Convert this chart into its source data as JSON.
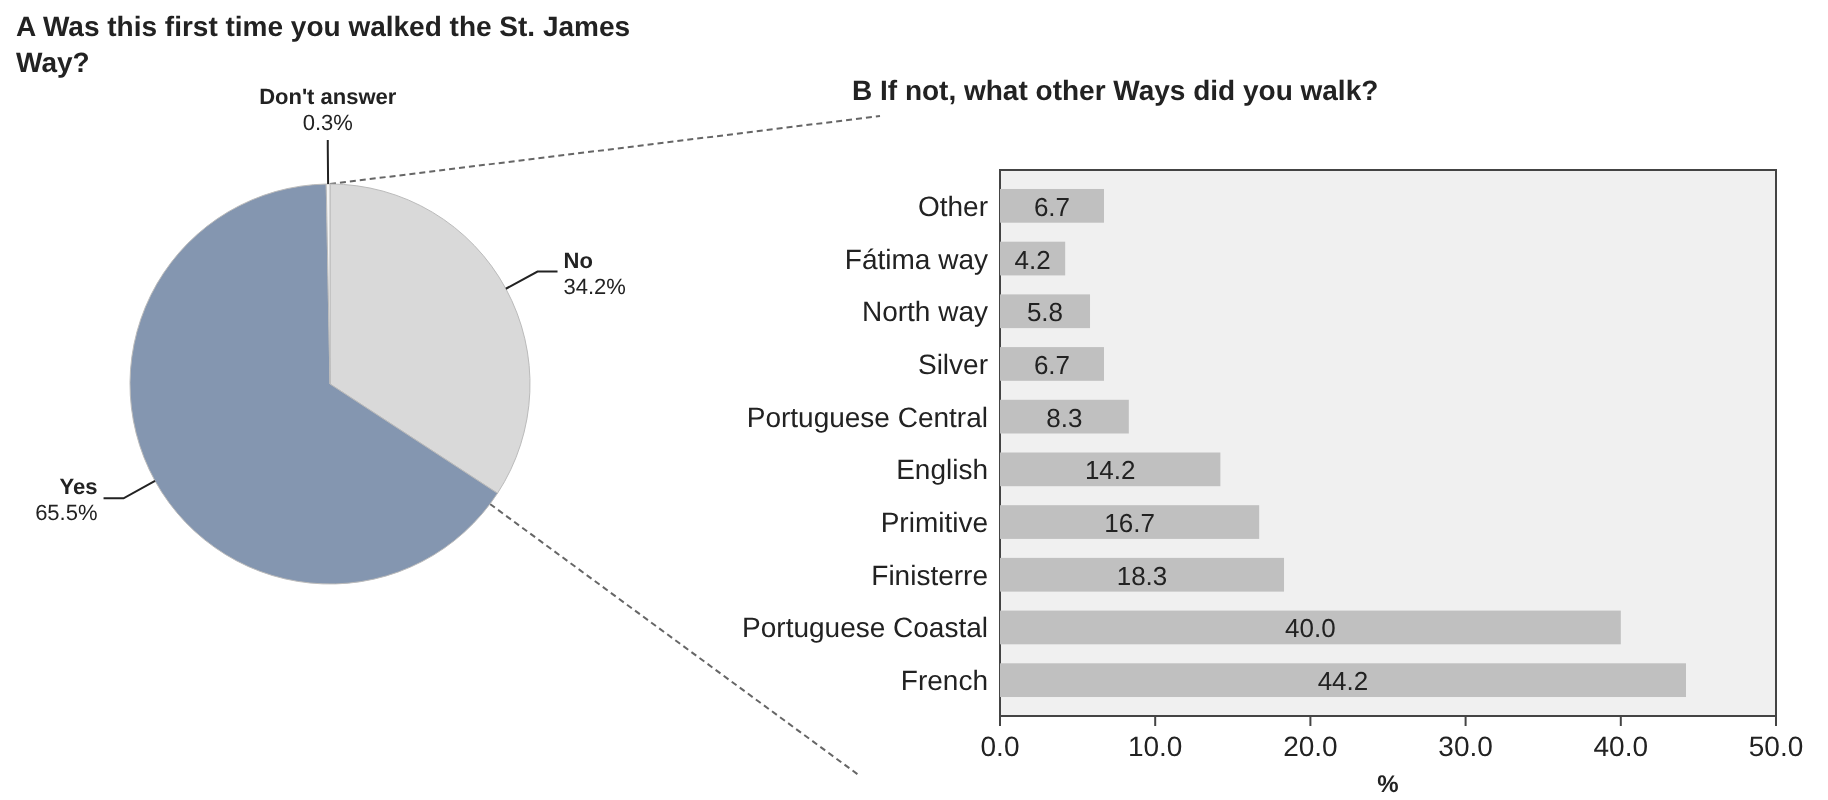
{
  "chart_data": [
    {
      "type": "pie",
      "title": "A  Was this first time you walked the St. James Way?",
      "categories": [
        "No",
        "Yes",
        "Don't answer"
      ],
      "values": [
        34.2,
        65.5,
        0.3
      ],
      "colors": [
        "#d9d9d9",
        "#8496b0",
        "#f2f2f2"
      ],
      "value_labels": [
        "34.2%",
        "65.5%",
        "0.3%"
      ]
    },
    {
      "type": "bar",
      "orientation": "horizontal",
      "title": "B  If not, what other Ways did you walk?",
      "xlabel": "%",
      "categories": [
        "Other",
        "Fátima way",
        "North way",
        "Silver",
        "Portuguese Central",
        "English",
        "Primitive",
        "Finisterre",
        "Portuguese Coastal",
        "French"
      ],
      "values": [
        6.7,
        4.2,
        5.8,
        6.7,
        8.3,
        14.2,
        16.7,
        18.3,
        40.0,
        44.2
      ],
      "value_labels": [
        "6.7",
        "4.2",
        "5.8",
        "6.7",
        "8.3",
        "14.2",
        "16.7",
        "18.3",
        "40.0",
        "44.2"
      ],
      "color": "#c0c0c0",
      "xlim": [
        0,
        50
      ],
      "xticks": [
        {
          "value": 0,
          "label": "0.0"
        },
        {
          "value": 10,
          "label": "10.0"
        },
        {
          "value": 20,
          "label": "20.0"
        },
        {
          "value": 30,
          "label": "30.0"
        },
        {
          "value": 40,
          "label": "40.0"
        },
        {
          "value": 50,
          "label": "50.0"
        }
      ],
      "grid": false
    }
  ]
}
